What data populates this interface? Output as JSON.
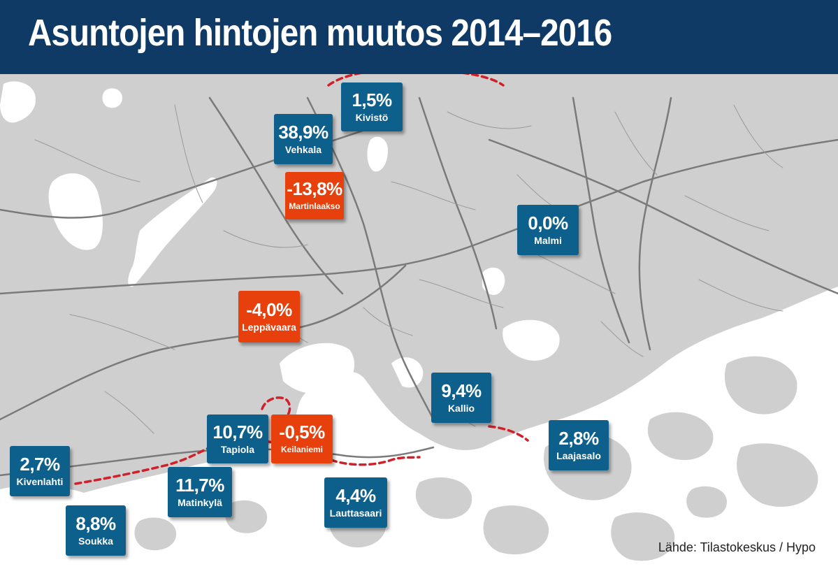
{
  "title": "Asuntojen hintojen muutos 2014–2016",
  "source": "Lähde: Tilastokeskus / Hypo",
  "colors": {
    "header_bg": "#0f3a66",
    "positive_box": "#0d5f8c",
    "negative_box": "#e8400c",
    "land": "#cfcfcf",
    "water": "#ffffff",
    "road": "#7a7a7a",
    "metro_line": "#d0202a"
  },
  "areas": [
    {
      "id": "kivisto",
      "name": "Kivistö",
      "change": "1,5%",
      "sign": "positive"
    },
    {
      "id": "vehkala",
      "name": "Vehkala",
      "change": "38,9%",
      "sign": "positive"
    },
    {
      "id": "martinlaakso",
      "name": "Martinlaakso",
      "change": "-13,8%",
      "sign": "negative"
    },
    {
      "id": "malmi",
      "name": "Malmi",
      "change": "0,0%",
      "sign": "positive"
    },
    {
      "id": "leppavaara",
      "name": "Leppävaara",
      "change": "-4,0%",
      "sign": "negative"
    },
    {
      "id": "kallio",
      "name": "Kallio",
      "change": "9,4%",
      "sign": "positive"
    },
    {
      "id": "tapiola",
      "name": "Tapiola",
      "change": "10,7%",
      "sign": "positive"
    },
    {
      "id": "keilaniemi",
      "name": "Keilaniemi",
      "change": "-0,5%",
      "sign": "negative"
    },
    {
      "id": "laajasalo",
      "name": "Laajasalo",
      "change": "2,8%",
      "sign": "positive"
    },
    {
      "id": "kivenlahti",
      "name": "Kivenlahti",
      "change": "2,7%",
      "sign": "positive"
    },
    {
      "id": "matinkyla",
      "name": "Matinkylä",
      "change": "11,7%",
      "sign": "positive"
    },
    {
      "id": "lauttasaari",
      "name": "Lauttasaari",
      "change": "4,4%",
      "sign": "positive"
    },
    {
      "id": "soukka",
      "name": "Soukka",
      "change": "8,8%",
      "sign": "positive"
    }
  ]
}
